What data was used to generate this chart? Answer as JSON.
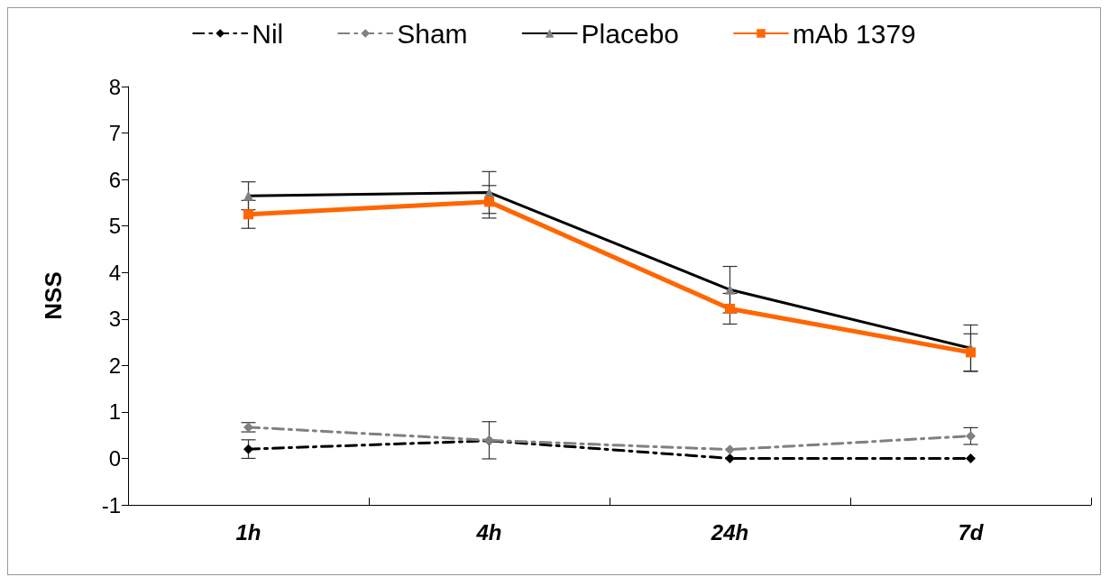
{
  "chart_data": {
    "type": "line",
    "ylabel": "NSS",
    "categories": [
      "1h",
      "4h",
      "24h",
      "7d"
    ],
    "ylim": [
      -1,
      8
    ],
    "yticks": [
      -1,
      0,
      1,
      2,
      3,
      4,
      5,
      6,
      7,
      8
    ],
    "grid": false,
    "legend": "top",
    "series": [
      {
        "name": "Nil",
        "color": "#000000",
        "marker": "diamond",
        "line_style": "dashed",
        "values": [
          0.2,
          0.38,
          0,
          0
        ],
        "errors": [
          0.2,
          null,
          null,
          null
        ]
      },
      {
        "name": "Sham",
        "color": "#808080",
        "marker": "diamond",
        "line_style": "dashed",
        "values": [
          0.67,
          0.39,
          0.19,
          0.48
        ],
        "errors": [
          0.1,
          0.4,
          null,
          0.18
        ]
      },
      {
        "name": "Placebo",
        "color": "#000000",
        "marker": "triangle",
        "line_style": "solid",
        "values": [
          5.65,
          5.72,
          3.63,
          2.37
        ],
        "errors": [
          0.3,
          0.45,
          0.5,
          0.5
        ]
      },
      {
        "name": "mAb 1379",
        "color": "#ff6600",
        "marker": "square",
        "line_style": "solid",
        "values": [
          5.25,
          5.52,
          3.22,
          2.28
        ],
        "errors": [
          0.3,
          0.35,
          0.33,
          0.4
        ]
      }
    ]
  }
}
